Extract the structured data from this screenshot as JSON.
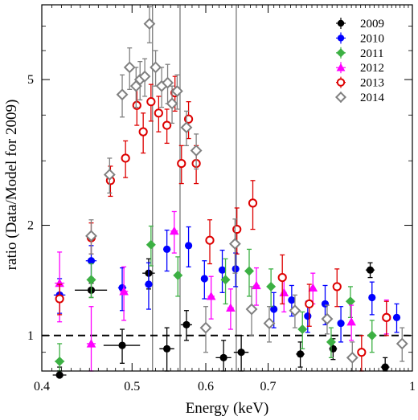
{
  "chart_data": {
    "type": "scatter",
    "xlabel": "Energy (keV)",
    "ylabel": "ratio (Data/Model for 2009)",
    "x_scale": "log",
    "y_scale": "log",
    "xlim": [
      0.4,
      1.0
    ],
    "ylim": [
      0.8,
      8.0
    ],
    "x_ticks": [
      0.4,
      0.5,
      0.6,
      0.7,
      1.0
    ],
    "x_tick_labels": [
      "0.4",
      "0.5",
      "0.6",
      "0.7",
      "1"
    ],
    "y_ticks": [
      1,
      2,
      5
    ],
    "y_tick_labels": [
      "1",
      "2",
      "5"
    ],
    "reference_line_y": 1.0,
    "vertical_lines_x": [
      0.526,
      0.563,
      0.647
    ],
    "legend_position": "top-right",
    "series": [
      {
        "name": "2009",
        "marker": "circle-filled",
        "color": "#000000",
        "points": [
          {
            "x": 0.418,
            "y": 0.78,
            "xerr": 0.007,
            "yerr": 0.04
          },
          {
            "x": 0.452,
            "y": 1.33,
            "xerr": 0.018,
            "yerr": 0.06
          },
          {
            "x": 0.488,
            "y": 0.94,
            "xerr": 0.022,
            "yerr": 0.1
          },
          {
            "x": 0.521,
            "y": 1.48,
            "xerr": 0.008,
            "yerr": 0.14
          },
          {
            "x": 0.545,
            "y": 0.92,
            "xerr": 0.01,
            "yerr": 0.13
          },
          {
            "x": 0.572,
            "y": 1.07,
            "xerr": 0.008,
            "yerr": 0.1
          },
          {
            "x": 0.627,
            "y": 0.87,
            "xerr": 0.012,
            "yerr": 0.1
          },
          {
            "x": 0.655,
            "y": 0.9,
            "xerr": 0.012,
            "yerr": 0.1
          },
          {
            "x": 0.758,
            "y": 0.89,
            "xerr": 0.008,
            "yerr": 0.07
          },
          {
            "x": 0.822,
            "y": 0.92,
            "xerr": 0.008,
            "yerr": 0.06
          },
          {
            "x": 0.901,
            "y": 1.51,
            "xerr": 0.01,
            "yerr": 0.07
          },
          {
            "x": 0.935,
            "y": 0.82,
            "xerr": 0.01,
            "yerr": 0.05
          }
        ]
      },
      {
        "name": "2010",
        "marker": "circle-filled",
        "color": "#0000ff",
        "points": [
          {
            "x": 0.418,
            "y": 1.29,
            "xerr": 0.006,
            "yerr": 0.14
          },
          {
            "x": 0.452,
            "y": 1.6,
            "xerr": 0.006,
            "yerr": 0.16
          },
          {
            "x": 0.488,
            "y": 1.35,
            "xerr": 0.005,
            "yerr": 0.18
          },
          {
            "x": 0.521,
            "y": 1.38,
            "xerr": 0.005,
            "yerr": 0.2
          },
          {
            "x": 0.545,
            "y": 1.72,
            "xerr": 0.005,
            "yerr": 0.22
          },
          {
            "x": 0.575,
            "y": 1.76,
            "xerr": 0.005,
            "yerr": 0.22
          },
          {
            "x": 0.598,
            "y": 1.43,
            "xerr": 0.005,
            "yerr": 0.17
          },
          {
            "x": 0.625,
            "y": 1.51,
            "xerr": 0.005,
            "yerr": 0.2
          },
          {
            "x": 0.646,
            "y": 1.52,
            "xerr": 0.005,
            "yerr": 0.16
          },
          {
            "x": 0.71,
            "y": 1.18,
            "xerr": 0.005,
            "yerr": 0.13
          },
          {
            "x": 0.742,
            "y": 1.25,
            "xerr": 0.005,
            "yerr": 0.12
          },
          {
            "x": 0.772,
            "y": 1.13,
            "xerr": 0.005,
            "yerr": 0.11
          },
          {
            "x": 0.806,
            "y": 1.22,
            "xerr": 0.005,
            "yerr": 0.15
          },
          {
            "x": 0.838,
            "y": 1.08,
            "xerr": 0.005,
            "yerr": 0.12
          },
          {
            "x": 0.905,
            "y": 1.27,
            "xerr": 0.005,
            "yerr": 0.13
          },
          {
            "x": 0.962,
            "y": 1.12,
            "xerr": 0.005,
            "yerr": 0.1
          }
        ]
      },
      {
        "name": "2011",
        "marker": "diamond-filled",
        "color": "#3cb043",
        "points": [
          {
            "x": 0.418,
            "y": 0.85,
            "xerr": 0.005,
            "yerr": 0.1
          },
          {
            "x": 0.452,
            "y": 1.42,
            "xerr": 0.005,
            "yerr": 0.15
          },
          {
            "x": 0.524,
            "y": 1.77,
            "xerr": 0.005,
            "yerr": 0.22
          },
          {
            "x": 0.56,
            "y": 1.46,
            "xerr": 0.005,
            "yerr": 0.18
          },
          {
            "x": 0.63,
            "y": 1.42,
            "xerr": 0.005,
            "yerr": 0.2
          },
          {
            "x": 0.668,
            "y": 1.5,
            "xerr": 0.005,
            "yerr": 0.22
          },
          {
            "x": 0.705,
            "y": 1.36,
            "xerr": 0.005,
            "yerr": 0.16
          },
          {
            "x": 0.762,
            "y": 1.04,
            "xerr": 0.005,
            "yerr": 0.12
          },
          {
            "x": 0.818,
            "y": 0.96,
            "xerr": 0.005,
            "yerr": 0.09
          },
          {
            "x": 0.858,
            "y": 1.24,
            "xerr": 0.005,
            "yerr": 0.12
          },
          {
            "x": 0.905,
            "y": 1.0,
            "xerr": 0.005,
            "yerr": 0.1
          }
        ]
      },
      {
        "name": "2012",
        "marker": "triangle-filled",
        "color": "#ff00ff",
        "points": [
          {
            "x": 0.418,
            "y": 1.39,
            "xerr": 0.005,
            "yerr": 0.3
          },
          {
            "x": 0.452,
            "y": 0.95,
            "xerr": 0.005,
            "yerr": 0.25
          },
          {
            "x": 0.49,
            "y": 1.32,
            "xerr": 0.005,
            "yerr": 0.22
          },
          {
            "x": 0.555,
            "y": 1.93,
            "xerr": 0.005,
            "yerr": 0.25
          },
          {
            "x": 0.608,
            "y": 1.28,
            "xerr": 0.005,
            "yerr": 0.17
          },
          {
            "x": 0.638,
            "y": 1.19,
            "xerr": 0.005,
            "yerr": 0.15
          },
          {
            "x": 0.68,
            "y": 1.37,
            "xerr": 0.005,
            "yerr": 0.16
          },
          {
            "x": 0.728,
            "y": 1.31,
            "xerr": 0.005,
            "yerr": 0.15
          },
          {
            "x": 0.782,
            "y": 1.35,
            "xerr": 0.005,
            "yerr": 0.13
          },
          {
            "x": 0.86,
            "y": 1.09,
            "xerr": 0.005,
            "yerr": 0.12
          },
          {
            "x": 0.938,
            "y": 1.13,
            "xerr": 0.005,
            "yerr": 0.12
          }
        ]
      },
      {
        "name": "2013",
        "marker": "circle-open",
        "color": "#dd0000",
        "points": [
          {
            "x": 0.418,
            "y": 1.26,
            "xerr": 0.004,
            "yerr": 0.12
          },
          {
            "x": 0.452,
            "y": 1.85,
            "xerr": 0.004,
            "yerr": 0.18
          },
          {
            "x": 0.474,
            "y": 2.65,
            "xerr": 0.004,
            "yerr": 0.25
          },
          {
            "x": 0.492,
            "y": 3.05,
            "xerr": 0.004,
            "yerr": 0.35
          },
          {
            "x": 0.506,
            "y": 4.25,
            "xerr": 0.004,
            "yerr": 0.5
          },
          {
            "x": 0.514,
            "y": 3.6,
            "xerr": 0.004,
            "yerr": 0.45
          },
          {
            "x": 0.524,
            "y": 4.35,
            "xerr": 0.004,
            "yerr": 0.5
          },
          {
            "x": 0.534,
            "y": 4.05,
            "xerr": 0.004,
            "yerr": 0.45
          },
          {
            "x": 0.545,
            "y": 3.75,
            "xerr": 0.004,
            "yerr": 0.4
          },
          {
            "x": 0.556,
            "y": 4.6,
            "xerr": 0.004,
            "yerr": 0.5
          },
          {
            "x": 0.565,
            "y": 2.95,
            "xerr": 0.004,
            "yerr": 0.35
          },
          {
            "x": 0.575,
            "y": 3.9,
            "xerr": 0.004,
            "yerr": 0.45
          },
          {
            "x": 0.586,
            "y": 2.95,
            "xerr": 0.004,
            "yerr": 0.35
          },
          {
            "x": 0.606,
            "y": 1.82,
            "xerr": 0.004,
            "yerr": 0.25
          },
          {
            "x": 0.648,
            "y": 1.95,
            "xerr": 0.004,
            "yerr": 0.28
          },
          {
            "x": 0.674,
            "y": 2.3,
            "xerr": 0.004,
            "yerr": 0.35
          },
          {
            "x": 0.725,
            "y": 1.44,
            "xerr": 0.004,
            "yerr": 0.22
          },
          {
            "x": 0.775,
            "y": 1.22,
            "xerr": 0.004,
            "yerr": 0.16
          },
          {
            "x": 0.83,
            "y": 1.36,
            "xerr": 0.004,
            "yerr": 0.16
          },
          {
            "x": 0.882,
            "y": 0.9,
            "xerr": 0.004,
            "yerr": 0.1
          },
          {
            "x": 0.938,
            "y": 1.12,
            "xerr": 0.004,
            "yerr": 0.12
          }
        ]
      },
      {
        "name": "2014",
        "marker": "diamond-open",
        "color": "#808080",
        "points": [
          {
            "x": 0.452,
            "y": 1.87,
            "xerr": 0.004,
            "yerr": 0.2
          },
          {
            "x": 0.473,
            "y": 2.75,
            "xerr": 0.004,
            "yerr": 0.3
          },
          {
            "x": 0.488,
            "y": 4.55,
            "xerr": 0.004,
            "yerr": 0.6
          },
          {
            "x": 0.497,
            "y": 5.4,
            "xerr": 0.004,
            "yerr": 0.7
          },
          {
            "x": 0.505,
            "y": 4.8,
            "xerr": 0.004,
            "yerr": 0.6
          },
          {
            "x": 0.51,
            "y": 5.0,
            "xerr": 0.004,
            "yerr": 0.6
          },
          {
            "x": 0.516,
            "y": 5.1,
            "xerr": 0.004,
            "yerr": 0.6
          },
          {
            "x": 0.522,
            "y": 7.1,
            "xerr": 0.004,
            "yerr": 0.8
          },
          {
            "x": 0.53,
            "y": 5.4,
            "xerr": 0.004,
            "yerr": 0.6
          },
          {
            "x": 0.538,
            "y": 4.8,
            "xerr": 0.004,
            "yerr": 0.6
          },
          {
            "x": 0.546,
            "y": 4.9,
            "xerr": 0.004,
            "yerr": 0.6
          },
          {
            "x": 0.552,
            "y": 4.3,
            "xerr": 0.004,
            "yerr": 0.5
          },
          {
            "x": 0.559,
            "y": 4.65,
            "xerr": 0.004,
            "yerr": 0.5
          },
          {
            "x": 0.572,
            "y": 3.7,
            "xerr": 0.004,
            "yerr": 0.4
          },
          {
            "x": 0.586,
            "y": 3.2,
            "xerr": 0.004,
            "yerr": 0.35
          },
          {
            "x": 0.6,
            "y": 1.05,
            "xerr": 0.004,
            "yerr": 0.15
          },
          {
            "x": 0.645,
            "y": 1.78,
            "xerr": 0.004,
            "yerr": 0.3
          },
          {
            "x": 0.672,
            "y": 1.18,
            "xerr": 0.004,
            "yerr": 0.18
          },
          {
            "x": 0.702,
            "y": 1.08,
            "xerr": 0.004,
            "yerr": 0.12
          },
          {
            "x": 0.748,
            "y": 1.17,
            "xerr": 0.004,
            "yerr": 0.12
          },
          {
            "x": 0.81,
            "y": 1.11,
            "xerr": 0.004,
            "yerr": 0.1
          },
          {
            "x": 0.862,
            "y": 0.87,
            "xerr": 0.004,
            "yerr": 0.09
          },
          {
            "x": 0.975,
            "y": 0.95,
            "xerr": 0.004,
            "yerr": 0.1
          }
        ]
      }
    ]
  }
}
